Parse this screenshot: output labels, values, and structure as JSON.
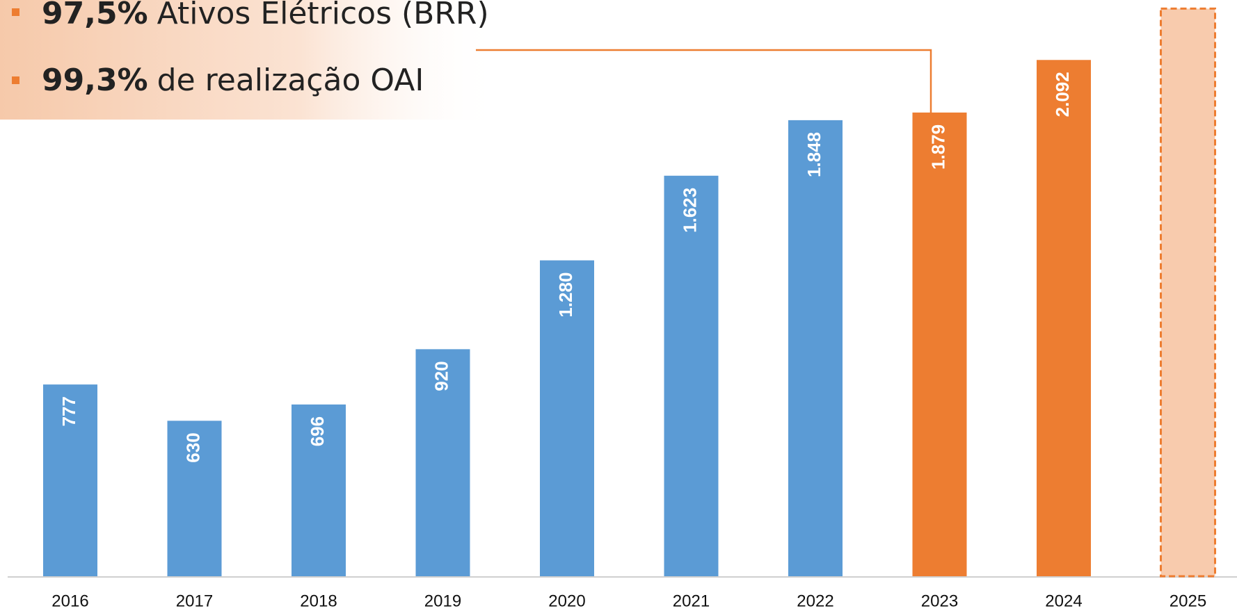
{
  "chart_data": {
    "type": "bar",
    "annotations": [
      {
        "highlight": "97,5%",
        "text": "Ativos Elétricos (BRR)"
      },
      {
        "highlight": "99,3%",
        "text": "de realização OAI"
      }
    ],
    "categories": [
      "2016",
      "2017",
      "2018",
      "2019",
      "2020",
      "2021",
      "2022",
      "2023",
      "2024",
      "2025"
    ],
    "values": [
      777,
      630,
      696,
      920,
      1280,
      1623,
      1848,
      1879,
      2092,
      2300
    ],
    "value_labels": [
      "777",
      "630",
      "696",
      "920",
      "1.280",
      "1.623",
      "1.848",
      "1.879",
      "2.092",
      null
    ],
    "colors": [
      "#5b9bd5",
      "#5b9bd5",
      "#5b9bd5",
      "#5b9bd5",
      "#5b9bd5",
      "#5b9bd5",
      "#5b9bd5",
      "#ed7d31",
      "#ed7d31",
      "#f8cbad"
    ],
    "ylim": [
      0,
      2335
    ]
  }
}
